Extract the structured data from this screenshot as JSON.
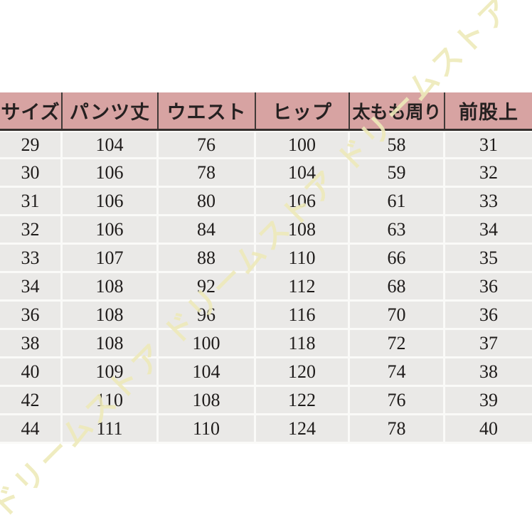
{
  "watermark": {
    "text": "ドリームストア ドリームストア ドリームストア ド"
  },
  "colors": {
    "header_bg": "#d7a3a2",
    "row_bg": "#eae9e7",
    "header_border": "#35302e",
    "watermark": "#eeeaba"
  },
  "chart_data": {
    "type": "table",
    "title": "",
    "columns": [
      "サイズ",
      "パンツ丈",
      "ウエスト",
      "ヒップ",
      "太もも周り",
      "前股上"
    ],
    "rows": [
      [
        29,
        104,
        76,
        100,
        58,
        31
      ],
      [
        30,
        106,
        78,
        104,
        59,
        32
      ],
      [
        31,
        106,
        80,
        106,
        61,
        33
      ],
      [
        32,
        106,
        84,
        108,
        63,
        34
      ],
      [
        33,
        107,
        88,
        110,
        66,
        35
      ],
      [
        34,
        108,
        92,
        112,
        68,
        36
      ],
      [
        36,
        108,
        96,
        116,
        70,
        36
      ],
      [
        38,
        108,
        100,
        118,
        72,
        37
      ],
      [
        40,
        109,
        104,
        120,
        74,
        38
      ],
      [
        42,
        110,
        108,
        122,
        76,
        39
      ],
      [
        44,
        111,
        110,
        124,
        78,
        40
      ]
    ]
  }
}
